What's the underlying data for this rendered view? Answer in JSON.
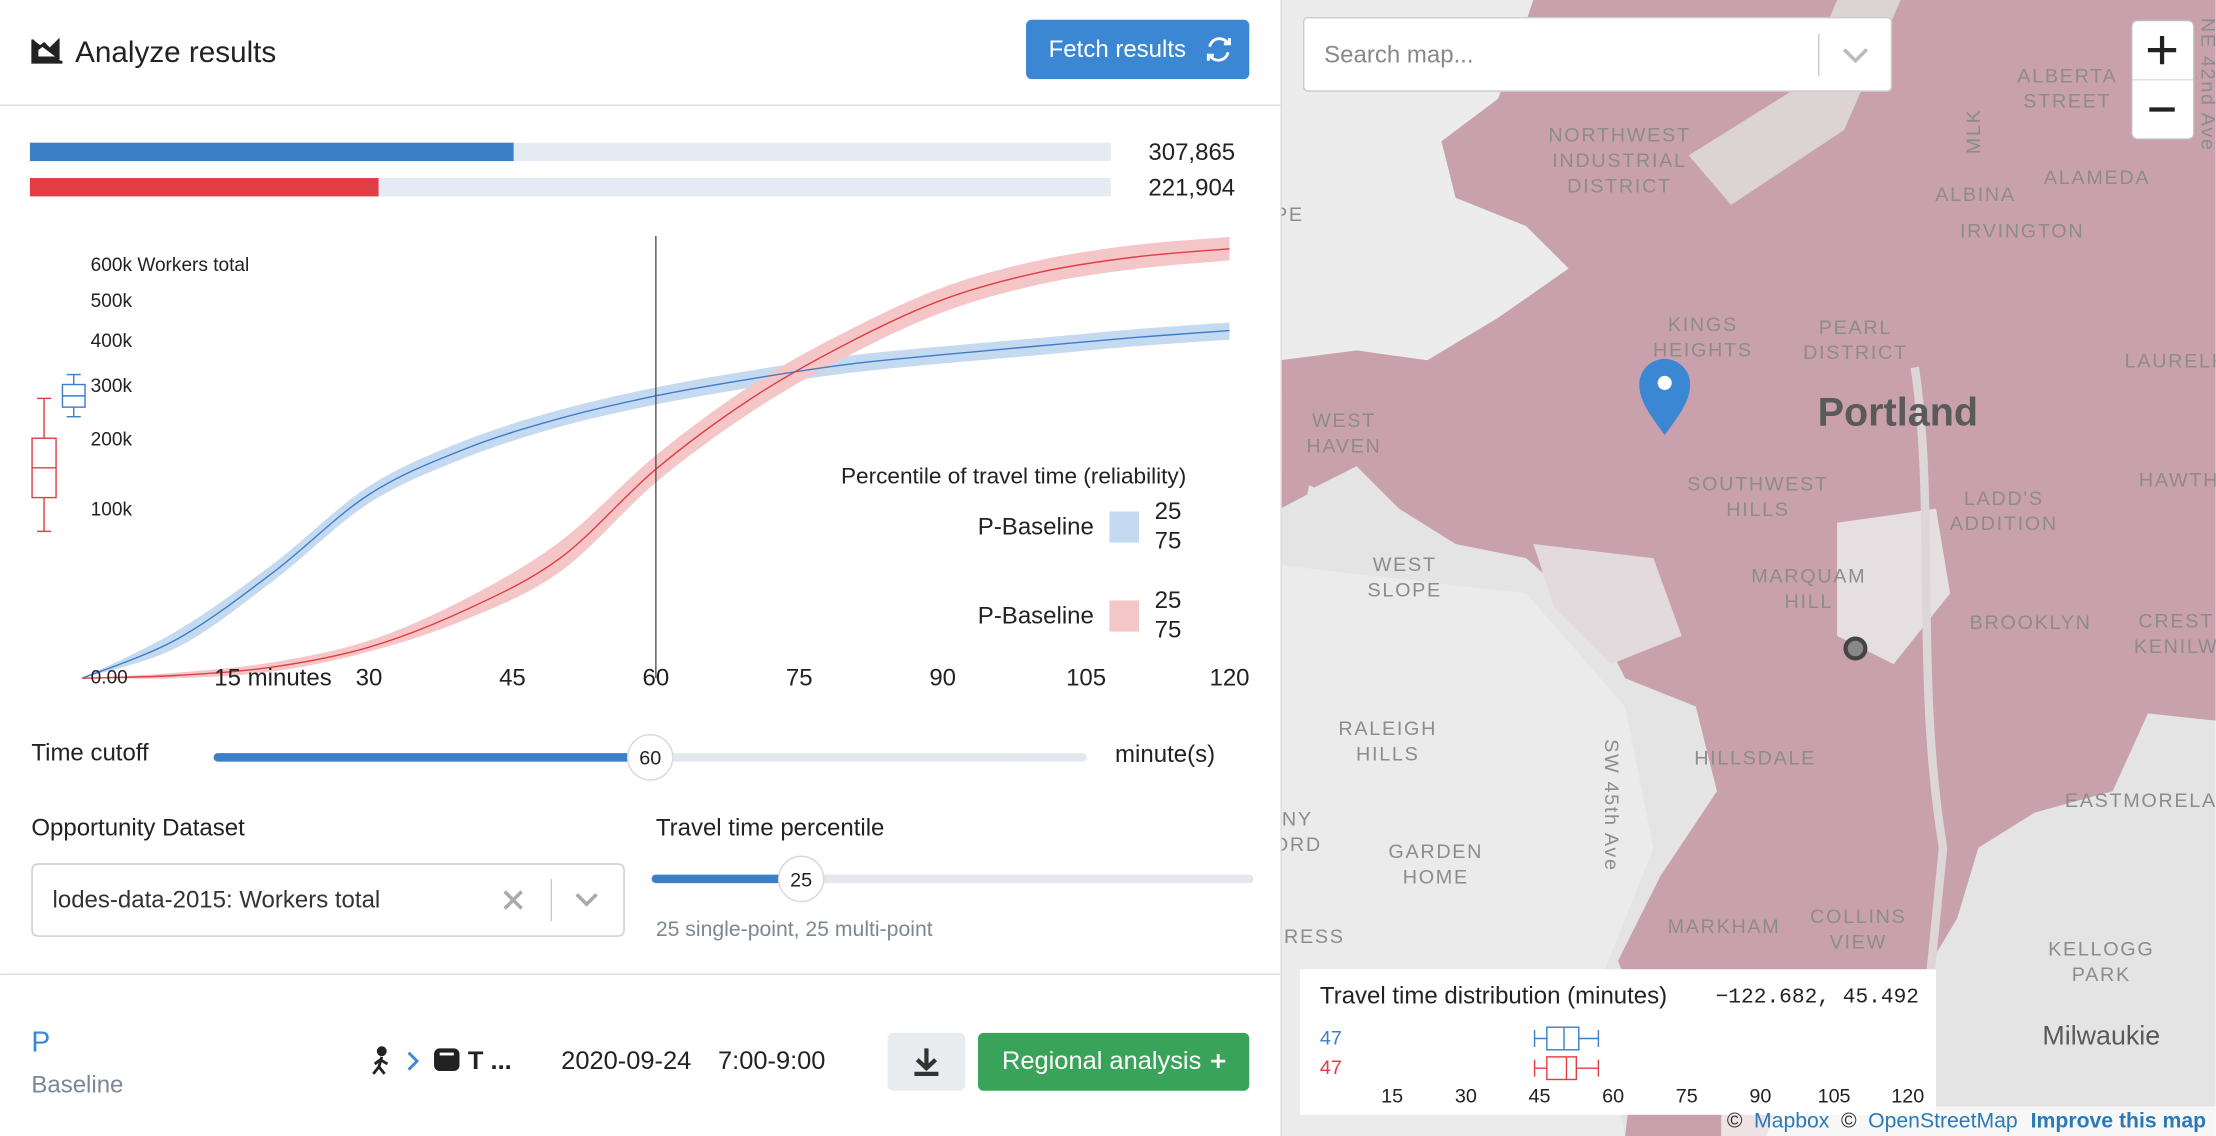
{
  "header": {
    "title": "Analyze results",
    "button": "Fetch results"
  },
  "summary": {
    "xlim": [
      0,
      688000
    ],
    "bars": [
      {
        "color": "#3b7fc9",
        "value": 307865,
        "value_label": "307,865"
      },
      {
        "color": "#e03e44",
        "value": 221904,
        "value_label": "221,904"
      }
    ]
  },
  "chart_data": {
    "type": "line",
    "yscale": "sqrt",
    "x": [
      0,
      10,
      20,
      30,
      40,
      50,
      60,
      70,
      80,
      90,
      100,
      110,
      120
    ],
    "xlim": [
      0,
      120
    ],
    "xticks": [
      {
        "value": 15,
        "label": "15 minutes"
      },
      30,
      45,
      60,
      75,
      90,
      105,
      120
    ],
    "ylim": [
      0,
      600000
    ],
    "yticks": [
      {
        "value": 0,
        "label": "0.00"
      },
      {
        "value": 100000,
        "label": "100k"
      },
      {
        "value": 200000,
        "label": "200k"
      },
      {
        "value": 300000,
        "label": "300k"
      },
      {
        "value": 400000,
        "label": "400k"
      },
      {
        "value": 500000,
        "label": "500k"
      },
      {
        "value": 600000,
        "label": "600k Workers total"
      }
    ],
    "legend_title": "Percentile of travel time (reliability)",
    "series": [
      {
        "name": "P-Baseline",
        "color": "#3b7fc9",
        "band_color": "#c5daf0",
        "percentiles": [
          25,
          75
        ],
        "values": [
          0,
          5500,
          39600,
          119000,
          185000,
          238000,
          281000,
          316000,
          347000,
          369000,
          389000,
          409000,
          426000
        ],
        "lower": [
          0,
          3400,
          33500,
          108000,
          171000,
          223000,
          264000,
          298000,
          328000,
          349000,
          368000,
          388000,
          404000
        ],
        "upper": [
          0,
          8100,
          46200,
          130000,
          199000,
          254000,
          298000,
          334000,
          366000,
          388000,
          408000,
          429000,
          446000
        ],
        "box": {
          "min": 241000,
          "q1": 259000,
          "median": 281000,
          "q3": 304000,
          "max": 325000
        }
      },
      {
        "name": "P-Baseline",
        "color": "#e03e44",
        "band_color": "#f5c6c8",
        "percentiles": [
          25,
          75
        ],
        "values": [
          0,
          28,
          450,
          3400,
          16200,
          50900,
          154000,
          276000,
          395000,
          505000,
          580000,
          625000,
          650000
        ],
        "lower": [
          0,
          0,
          170,
          2500,
          12000,
          40000,
          135000,
          250000,
          365000,
          472000,
          546000,
          590000,
          615000
        ],
        "upper": [
          0,
          110,
          900,
          5000,
          22000,
          66000,
          175000,
          303000,
          425000,
          538000,
          615000,
          661000,
          686000
        ],
        "box": {
          "min": 76000,
          "q1": 115000,
          "median": 156000,
          "q3": 203000,
          "max": 276000
        }
      }
    ]
  },
  "controls": {
    "time_cutoff": {
      "label": "Time cutoff",
      "value": 60,
      "range": [
        0,
        120
      ],
      "unit": "minute(s)"
    },
    "dataset": {
      "label": "Opportunity Dataset",
      "selected": "lodes-data-2015: Workers total"
    },
    "percentile": {
      "label": "Travel time percentile",
      "value": 25,
      "range": [
        1,
        99
      ],
      "note": "25 single-point, 25 multi-point"
    }
  },
  "footer": {
    "project": "P",
    "scenario": "Baseline",
    "mode": "T ...",
    "date": "2020-09-24",
    "time": "7:00-9:00",
    "button": "Regional analysis"
  },
  "map": {
    "search_placeholder": "Search map...",
    "city": "Portland",
    "town": "Milwaukie",
    "streets": [
      "MLK",
      "SW 45th Ave",
      "NE 42nd Ave"
    ],
    "labels": [
      [
        "NORTHWEST",
        "INDUSTRIAL",
        "DISTRICT"
      ],
      [
        "ALBERTA",
        "STREET"
      ],
      [
        "ALBINA"
      ],
      [
        "ALAMEDA"
      ],
      [
        "IRVINGTON"
      ],
      [
        "KINGS",
        "HEIGHTS"
      ],
      [
        "PEARL",
        "DISTRICT"
      ],
      [
        "LAURELH"
      ],
      [
        "WEST",
        "HAVEN"
      ],
      [
        "SOUTHWEST",
        "HILLS"
      ],
      [
        "LADD'S",
        "ADDITION"
      ],
      [
        "HAWTH"
      ],
      [
        "WEST",
        "SLOPE"
      ],
      [
        "MARQUAM",
        "HILL"
      ],
      [
        "BROOKLYN"
      ],
      [
        "CREST",
        "KENILW"
      ],
      [
        "RALEIGH",
        "HILLS"
      ],
      [
        "HILLSDALE"
      ],
      [
        "EASTMORELA"
      ],
      [
        "GARDEN",
        "HOME"
      ],
      [
        "MARKHAM"
      ],
      [
        "COLLINS",
        "VIEW"
      ],
      [
        "KELLOGG",
        "PARK"
      ],
      [
        "PE"
      ],
      [
        "NY",
        "ORD"
      ],
      [
        "RESS"
      ]
    ],
    "distribution": {
      "title": "Travel time distribution (minutes)",
      "coords": "−122.682, 45.492",
      "xlim": [
        0,
        120
      ],
      "xticks": [
        15,
        30,
        45,
        60,
        75,
        90,
        105,
        120
      ],
      "boxes": [
        {
          "color": "#3b7fc9",
          "label": 47,
          "min": 44,
          "q1": 46.5,
          "median": 50,
          "q3": 53,
          "max": 57
        },
        {
          "color": "#e03e44",
          "label": 47,
          "min": 44,
          "q1": 46.5,
          "median": 50.5,
          "q3": 52.5,
          "max": 57
        }
      ]
    },
    "attribution": [
      "©",
      "Mapbox",
      "©",
      "OpenStreetMap",
      "Improve this map"
    ]
  }
}
